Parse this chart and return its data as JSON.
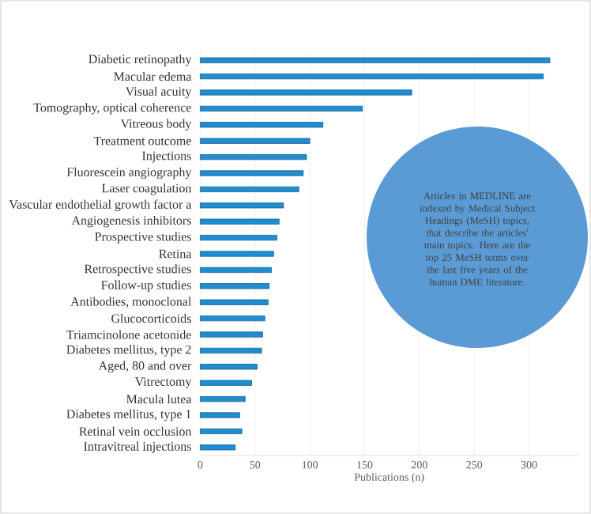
{
  "chart_data": {
    "type": "bar",
    "orientation": "horizontal",
    "xlabel": "Publications (n)",
    "categories": [
      "Diabetic retinopathy",
      "Macular edema",
      "Visual acuity",
      "Tomography, optical coherence",
      "Vitreous body",
      "Treatment outcome",
      "Injections",
      "Fluorescein angiography",
      "Laser coagulation",
      "Vascular endothelial growth factor a",
      "Angiogenesis inhibitors",
      "Prospective studies",
      "Retina",
      "Retrospective studies",
      "Follow-up studies",
      "Antibodies, monoclonal",
      "Glucocorticoids",
      "Triamcinolone acetonide",
      "Diabetes mellitus, type 2",
      "Aged, 80 and over",
      "Vitrectomy",
      "Macula lutea",
      "Diabetes mellitus, type 1",
      "Retinal vein occlusion",
      "Intravitreal injections"
    ],
    "values": [
      319,
      313,
      193,
      148,
      112,
      100,
      97,
      94,
      90,
      76,
      72,
      70,
      67,
      65,
      63,
      62,
      59,
      57,
      56,
      52,
      47,
      41,
      36,
      38,
      32
    ],
    "color": "#1f8dd0",
    "xlim": [
      0,
      345
    ],
    "xticks": [
      0,
      50,
      100,
      150,
      200,
      250,
      300
    ],
    "grid": "x",
    "annotations": [
      "Articles in MEDLINE are indexed by Medical Subject Headings (MeSH) topics, that describe the articles' main topics. Here are the top 25 MeSH terms over the last five years of the human DME literature."
    ]
  }
}
